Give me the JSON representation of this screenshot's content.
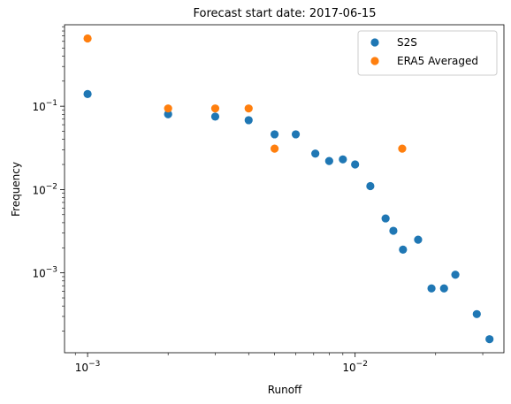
{
  "chart_data": {
    "type": "scatter",
    "title": "Forecast start date: 2017-06-15",
    "xlabel": "Runoff",
    "ylabel": "Frequency",
    "xscale": "log",
    "yscale": "log",
    "xlim": [
      0.00082,
      0.036
    ],
    "ylim": [
      0.00011,
      0.95
    ],
    "x_ticks": [
      {
        "value": 0.001,
        "label": "10^-3"
      },
      {
        "value": 0.01,
        "label": "10^-2"
      }
    ],
    "y_ticks": [
      {
        "value": 0.001,
        "label": "10^-3"
      },
      {
        "value": 0.01,
        "label": "10^-2"
      },
      {
        "value": 0.1,
        "label": "10^-1"
      }
    ],
    "legend_position": "top-right",
    "colors": {
      "S2S": "#1f77b4",
      "ERA5 Averaged": "#ff7f0e"
    },
    "series": [
      {
        "name": "S2S",
        "color": "#1f77b4",
        "points": [
          [
            0.001,
            0.14
          ],
          [
            0.002,
            0.08
          ],
          [
            0.003,
            0.075
          ],
          [
            0.004,
            0.068
          ],
          [
            0.005,
            0.046
          ],
          [
            0.006,
            0.046
          ],
          [
            0.0071,
            0.027
          ],
          [
            0.008,
            0.022
          ],
          [
            0.009,
            0.023
          ],
          [
            0.01,
            0.02
          ],
          [
            0.0114,
            0.011
          ],
          [
            0.013,
            0.0045
          ],
          [
            0.0139,
            0.0032
          ],
          [
            0.0151,
            0.0019
          ],
          [
            0.0172,
            0.0025
          ],
          [
            0.0193,
            0.00065
          ],
          [
            0.0215,
            0.00065
          ],
          [
            0.0237,
            0.00095
          ],
          [
            0.0285,
            0.00032
          ],
          [
            0.0318,
            0.00016
          ]
        ]
      },
      {
        "name": "ERA5 Averaged",
        "color": "#ff7f0e",
        "points": [
          [
            0.001,
            0.65
          ],
          [
            0.002,
            0.094
          ],
          [
            0.003,
            0.094
          ],
          [
            0.004,
            0.094
          ],
          [
            0.005,
            0.031
          ],
          [
            0.015,
            0.031
          ]
        ]
      }
    ]
  }
}
